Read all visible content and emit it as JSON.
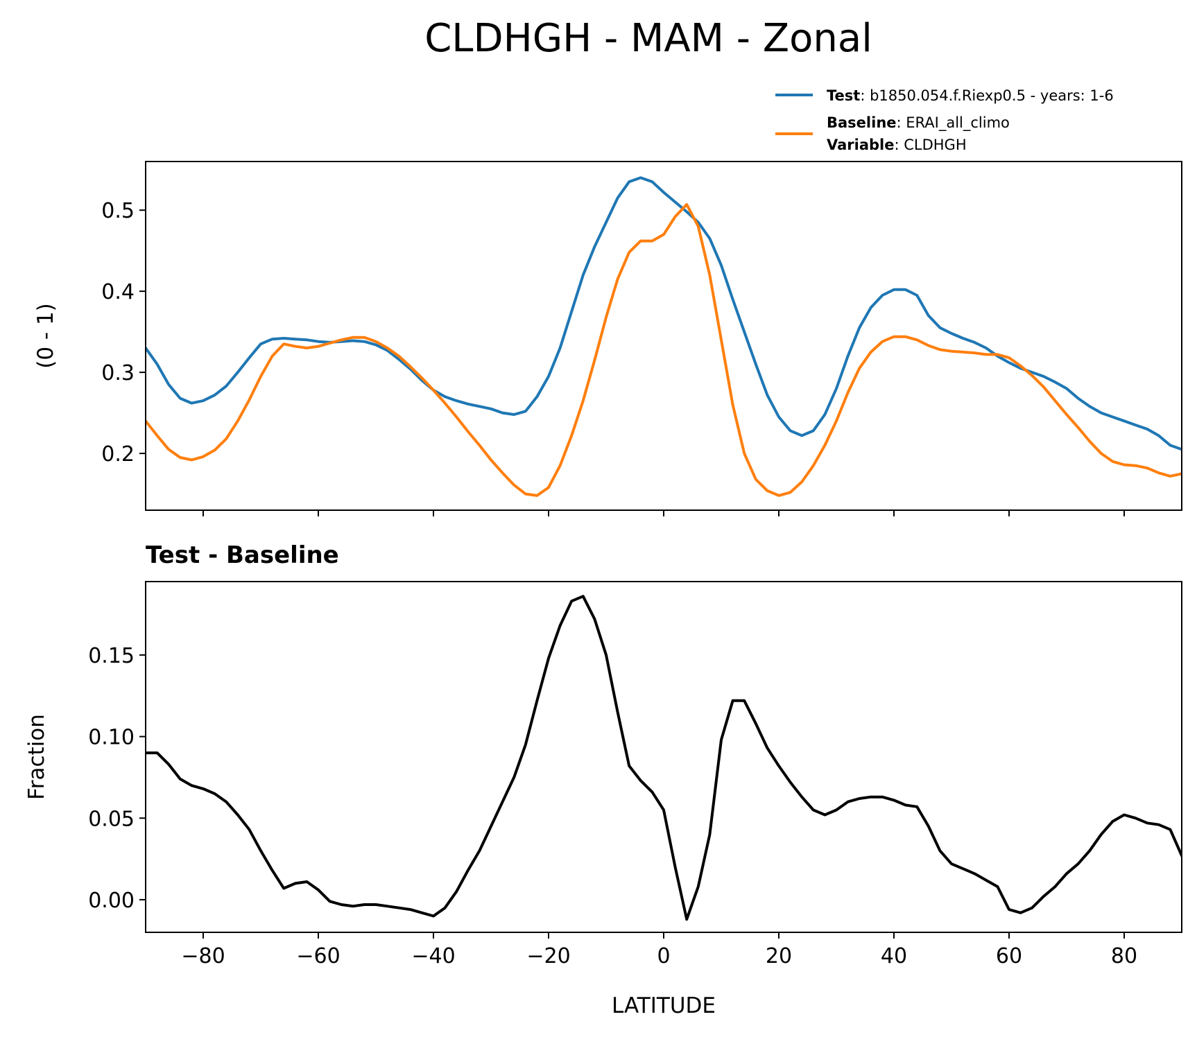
{
  "figure": {
    "title": "CLDHGH - MAM - Zonal",
    "legend": {
      "placement": "above-top-right",
      "entries": [
        {
          "key": "test",
          "bold": "Test",
          "text": ": b1850.054.f.Riexp0.5 - years: 1-6",
          "color": "#1f77b4"
        },
        {
          "key": "baseline",
          "bold": "Baseline",
          "text": ": ERAI_all_climo",
          "color": "#ff7f0e"
        }
      ],
      "extra": {
        "bold": "Variable",
        "text": ": CLDHGH"
      }
    }
  },
  "chart_data": [
    {
      "type": "line",
      "panel": "top",
      "ylabel": "(0 - 1)",
      "xlim": [
        -90,
        90
      ],
      "ylim": [
        0.13,
        0.56
      ],
      "yticks": [
        0.2,
        0.3,
        0.4,
        0.5
      ],
      "ytick_labels": [
        "0.2",
        "0.3",
        "0.4",
        "0.5"
      ],
      "xticks": [
        -80,
        -60,
        -40,
        -20,
        0,
        20,
        40,
        60,
        80
      ],
      "show_xtick_labels": false,
      "grid": false,
      "series": [
        {
          "name": "Test",
          "color": "#1f77b4",
          "x": [
            -90,
            -88,
            -86,
            -84,
            -82,
            -80,
            -78,
            -76,
            -74,
            -72,
            -70,
            -68,
            -66,
            -64,
            -62,
            -60,
            -58,
            -56,
            -54,
            -52,
            -50,
            -48,
            -46,
            -44,
            -42,
            -40,
            -38,
            -36,
            -34,
            -32,
            -30,
            -28,
            -26,
            -24,
            -22,
            -20,
            -18,
            -16,
            -14,
            -12,
            -10,
            -8,
            -6,
            -4,
            -2,
            0,
            2,
            4,
            6,
            8,
            10,
            12,
            14,
            16,
            18,
            20,
            22,
            24,
            26,
            28,
            30,
            32,
            34,
            36,
            38,
            40,
            42,
            44,
            46,
            48,
            50,
            52,
            54,
            56,
            58,
            60,
            62,
            64,
            66,
            68,
            70,
            72,
            74,
            76,
            78,
            80,
            82,
            84,
            86,
            88,
            90
          ],
          "y": [
            0.33,
            0.31,
            0.285,
            0.268,
            0.262,
            0.265,
            0.272,
            0.283,
            0.3,
            0.318,
            0.335,
            0.341,
            0.342,
            0.341,
            0.34,
            0.338,
            0.337,
            0.338,
            0.339,
            0.338,
            0.334,
            0.327,
            0.316,
            0.304,
            0.29,
            0.278,
            0.27,
            0.265,
            0.261,
            0.258,
            0.255,
            0.25,
            0.248,
            0.252,
            0.27,
            0.295,
            0.33,
            0.375,
            0.42,
            0.455,
            0.485,
            0.515,
            0.535,
            0.54,
            0.535,
            0.522,
            0.51,
            0.498,
            0.485,
            0.465,
            0.432,
            0.39,
            0.35,
            0.31,
            0.272,
            0.245,
            0.228,
            0.222,
            0.228,
            0.248,
            0.28,
            0.32,
            0.355,
            0.38,
            0.395,
            0.402,
            0.402,
            0.395,
            0.37,
            0.355,
            0.348,
            0.342,
            0.337,
            0.33,
            0.32,
            0.312,
            0.305,
            0.3,
            0.295,
            0.288,
            0.28,
            0.268,
            0.258,
            0.25,
            0.245,
            0.24,
            0.235,
            0.23,
            0.222,
            0.21,
            0.205
          ]
        },
        {
          "name": "Baseline",
          "color": "#ff7f0e",
          "x": [
            -90,
            -88,
            -86,
            -84,
            -82,
            -80,
            -78,
            -76,
            -74,
            -72,
            -70,
            -68,
            -66,
            -64,
            -62,
            -60,
            -58,
            -56,
            -54,
            -52,
            -50,
            -48,
            -46,
            -44,
            -42,
            -40,
            -38,
            -36,
            -34,
            -32,
            -30,
            -28,
            -26,
            -24,
            -22,
            -20,
            -18,
            -16,
            -14,
            -12,
            -10,
            -8,
            -6,
            -4,
            -2,
            0,
            2,
            4,
            6,
            8,
            10,
            12,
            14,
            16,
            18,
            20,
            22,
            24,
            26,
            28,
            30,
            32,
            34,
            36,
            38,
            40,
            42,
            44,
            46,
            48,
            50,
            52,
            54,
            56,
            58,
            60,
            62,
            64,
            66,
            68,
            70,
            72,
            74,
            76,
            78,
            80,
            82,
            84,
            86,
            88,
            90
          ],
          "y": [
            0.24,
            0.222,
            0.205,
            0.195,
            0.192,
            0.196,
            0.204,
            0.218,
            0.24,
            0.266,
            0.295,
            0.32,
            0.335,
            0.332,
            0.33,
            0.332,
            0.336,
            0.34,
            0.343,
            0.343,
            0.338,
            0.33,
            0.32,
            0.307,
            0.293,
            0.278,
            0.262,
            0.245,
            0.227,
            0.21,
            0.192,
            0.176,
            0.161,
            0.15,
            0.148,
            0.158,
            0.185,
            0.222,
            0.265,
            0.315,
            0.368,
            0.415,
            0.448,
            0.462,
            0.462,
            0.47,
            0.492,
            0.507,
            0.48,
            0.42,
            0.34,
            0.26,
            0.2,
            0.168,
            0.154,
            0.148,
            0.152,
            0.165,
            0.185,
            0.21,
            0.24,
            0.275,
            0.305,
            0.325,
            0.338,
            0.344,
            0.344,
            0.34,
            0.333,
            0.328,
            0.326,
            0.325,
            0.324,
            0.322,
            0.322,
            0.318,
            0.308,
            0.296,
            0.282,
            0.265,
            0.248,
            0.232,
            0.215,
            0.2,
            0.19,
            0.186,
            0.185,
            0.182,
            0.176,
            0.172,
            0.175
          ]
        }
      ]
    },
    {
      "type": "line",
      "panel": "bottom",
      "title": "Test - Baseline",
      "xlabel": "LATITUDE",
      "ylabel": "Fraction",
      "xlim": [
        -90,
        90
      ],
      "ylim": [
        -0.02,
        0.195
      ],
      "yticks": [
        0.0,
        0.05,
        0.1,
        0.15
      ],
      "ytick_labels": [
        "0.00",
        "0.05",
        "0.10",
        "0.15"
      ],
      "xticks": [
        -80,
        -60,
        -40,
        -20,
        0,
        20,
        40,
        60,
        80
      ],
      "xtick_labels": [
        "−80",
        "−60",
        "−40",
        "−20",
        "0",
        "20",
        "40",
        "60",
        "80"
      ],
      "grid": false,
      "series": [
        {
          "color": "#000000",
          "x": [
            -90,
            -88,
            -86,
            -84,
            -82,
            -80,
            -78,
            -76,
            -74,
            -72,
            -70,
            -68,
            -66,
            -64,
            -62,
            -60,
            -58,
            -56,
            -54,
            -52,
            -50,
            -48,
            -46,
            -44,
            -42,
            -40,
            -38,
            -36,
            -34,
            -32,
            -30,
            -28,
            -26,
            -24,
            -22,
            -20,
            -18,
            -16,
            -14,
            -12,
            -10,
            -8,
            -6,
            -4,
            -2,
            0,
            2,
            4,
            6,
            8,
            10,
            12,
            14,
            16,
            18,
            20,
            22,
            24,
            26,
            28,
            30,
            32,
            34,
            36,
            38,
            40,
            42,
            44,
            46,
            48,
            50,
            52,
            54,
            56,
            58,
            60,
            62,
            64,
            66,
            68,
            70,
            72,
            74,
            76,
            78,
            80,
            82,
            84,
            86,
            88,
            90
          ],
          "y": [
            0.09,
            0.09,
            0.083,
            0.074,
            0.07,
            0.068,
            0.065,
            0.06,
            0.052,
            0.043,
            0.03,
            0.018,
            0.007,
            0.01,
            0.011,
            0.006,
            -0.001,
            -0.003,
            -0.004,
            -0.003,
            -0.003,
            -0.004,
            -0.005,
            -0.006,
            -0.008,
            -0.01,
            -0.005,
            0.005,
            0.018,
            0.03,
            0.045,
            0.06,
            0.075,
            0.095,
            0.122,
            0.148,
            0.168,
            0.183,
            0.186,
            0.172,
            0.15,
            0.115,
            0.082,
            0.073,
            0.066,
            0.055,
            0.02,
            -0.012,
            0.008,
            0.04,
            0.098,
            0.122,
            0.122,
            0.108,
            0.093,
            0.082,
            0.072,
            0.063,
            0.055,
            0.052,
            0.055,
            0.06,
            0.062,
            0.063,
            0.063,
            0.061,
            0.058,
            0.057,
            0.045,
            0.03,
            0.022,
            0.019,
            0.016,
            0.012,
            0.008,
            -0.006,
            -0.008,
            -0.005,
            0.002,
            0.008,
            0.016,
            0.022,
            0.03,
            0.04,
            0.048,
            0.052,
            0.05,
            0.047,
            0.046,
            0.043,
            0.027
          ]
        }
      ]
    }
  ]
}
